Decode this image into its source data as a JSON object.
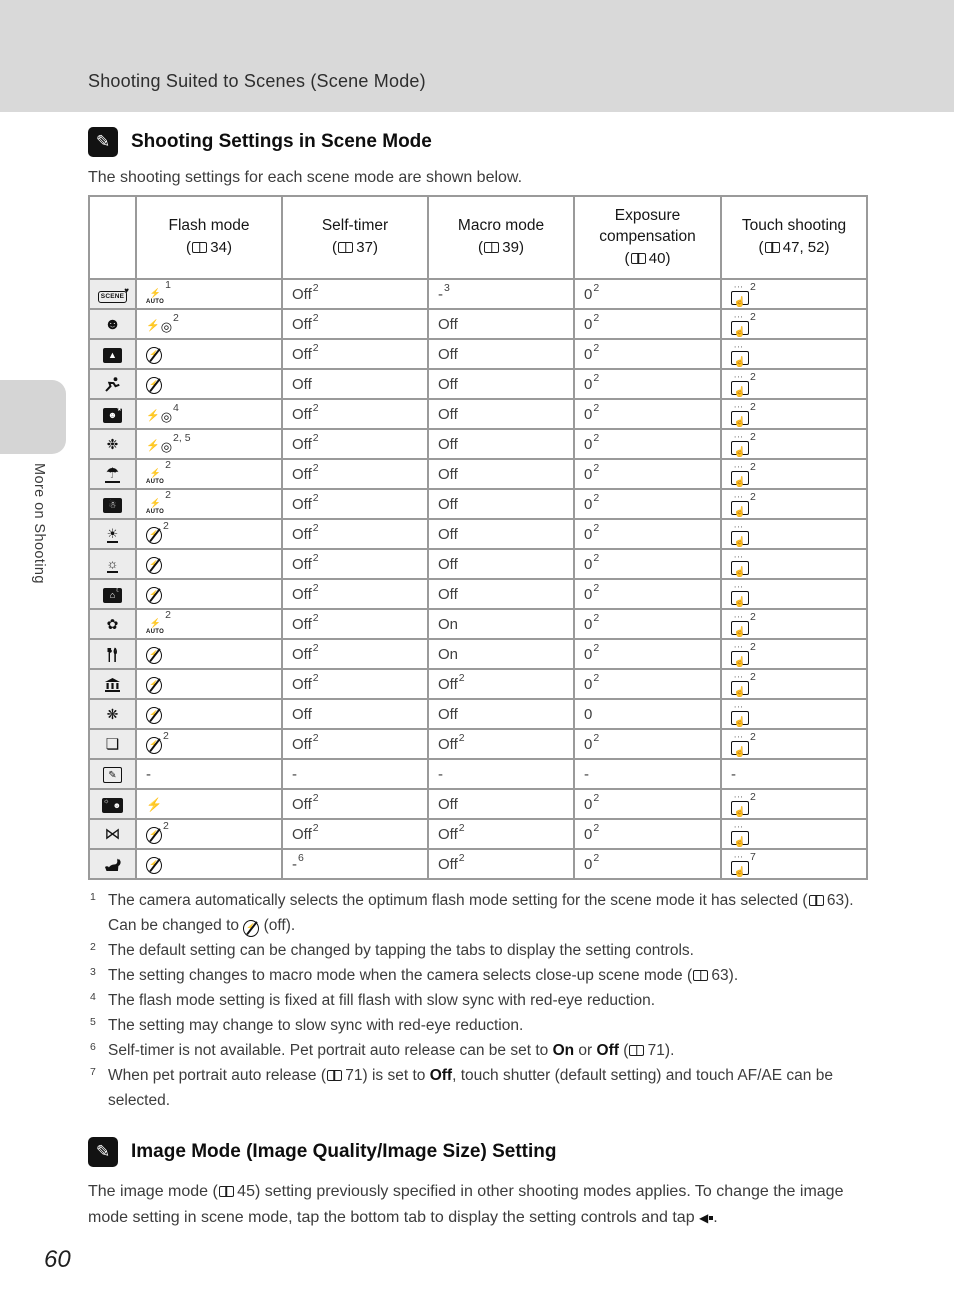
{
  "colors": {
    "band_gray": "#d9d9d9",
    "table_border_gray": "#9a9a9a",
    "icon_column_gray": "#ececec",
    "tab_gray": "#d5d5d5",
    "text": "#3c3c3c"
  },
  "page": {
    "header_title": "Shooting Suited to Scenes (Scene Mode)",
    "sidebar_label": "More on Shooting",
    "page_number": "60"
  },
  "section1": {
    "icon": "note-icon",
    "title": "Shooting Settings in Scene Mode",
    "intro": "The shooting settings for each scene mode are shown below."
  },
  "table": {
    "columns": [
      {
        "label": "",
        "book": null
      },
      {
        "label": "Flash mode",
        "book": "34"
      },
      {
        "label": "Self-timer",
        "book": "37"
      },
      {
        "label": "Macro mode",
        "book": "39"
      },
      {
        "label": "Exposure compensation",
        "book": "40"
      },
      {
        "label": "Touch shooting",
        "book": "47, 52"
      }
    ],
    "rows": [
      {
        "scene": "scene-auto-selector",
        "flash": {
          "icon": "flash-auto",
          "sup": "1"
        },
        "self_timer": {
          "text": "Off",
          "sup": "2"
        },
        "macro": {
          "text": "-",
          "sup": "3"
        },
        "exposure": {
          "text": "0",
          "sup": "2"
        },
        "touch": {
          "icon": "touch-shooting",
          "sup": "2"
        }
      },
      {
        "scene": "portrait",
        "flash": {
          "icon": "flash-redeye",
          "sup": "2"
        },
        "self_timer": {
          "text": "Off",
          "sup": "2"
        },
        "macro": {
          "text": "Off"
        },
        "exposure": {
          "text": "0",
          "sup": "2"
        },
        "touch": {
          "icon": "touch-shooting",
          "sup": "2"
        }
      },
      {
        "scene": "landscape",
        "flash": {
          "icon": "flash-off"
        },
        "self_timer": {
          "text": "Off",
          "sup": "2"
        },
        "macro": {
          "text": "Off"
        },
        "exposure": {
          "text": "0",
          "sup": "2"
        },
        "touch": {
          "icon": "touch-shooting"
        }
      },
      {
        "scene": "sports",
        "flash": {
          "icon": "flash-off"
        },
        "self_timer": {
          "text": "Off"
        },
        "macro": {
          "text": "Off"
        },
        "exposure": {
          "text": "0",
          "sup": "2"
        },
        "touch": {
          "icon": "touch-shooting",
          "sup": "2"
        }
      },
      {
        "scene": "night-portrait",
        "flash": {
          "icon": "flash-redeye",
          "sup": "4"
        },
        "self_timer": {
          "text": "Off",
          "sup": "2"
        },
        "macro": {
          "text": "Off"
        },
        "exposure": {
          "text": "0",
          "sup": "2"
        },
        "touch": {
          "icon": "touch-shooting",
          "sup": "2"
        }
      },
      {
        "scene": "party-indoor",
        "flash": {
          "icon": "flash-redeye",
          "sup": "2, 5"
        },
        "self_timer": {
          "text": "Off",
          "sup": "2"
        },
        "macro": {
          "text": "Off"
        },
        "exposure": {
          "text": "0",
          "sup": "2"
        },
        "touch": {
          "icon": "touch-shooting",
          "sup": "2"
        }
      },
      {
        "scene": "beach",
        "flash": {
          "icon": "flash-auto",
          "sup": "2"
        },
        "self_timer": {
          "text": "Off",
          "sup": "2"
        },
        "macro": {
          "text": "Off"
        },
        "exposure": {
          "text": "0",
          "sup": "2"
        },
        "touch": {
          "icon": "touch-shooting",
          "sup": "2"
        }
      },
      {
        "scene": "snow",
        "flash": {
          "icon": "flash-auto",
          "sup": "2"
        },
        "self_timer": {
          "text": "Off",
          "sup": "2"
        },
        "macro": {
          "text": "Off"
        },
        "exposure": {
          "text": "0",
          "sup": "2"
        },
        "touch": {
          "icon": "touch-shooting",
          "sup": "2"
        }
      },
      {
        "scene": "sunset",
        "flash": {
          "icon": "flash-off",
          "sup": "2"
        },
        "self_timer": {
          "text": "Off",
          "sup": "2"
        },
        "macro": {
          "text": "Off"
        },
        "exposure": {
          "text": "0",
          "sup": "2"
        },
        "touch": {
          "icon": "touch-shooting"
        }
      },
      {
        "scene": "dusk-dawn",
        "flash": {
          "icon": "flash-off"
        },
        "self_timer": {
          "text": "Off",
          "sup": "2"
        },
        "macro": {
          "text": "Off"
        },
        "exposure": {
          "text": "0",
          "sup": "2"
        },
        "touch": {
          "icon": "touch-shooting"
        }
      },
      {
        "scene": "night-landscape",
        "flash": {
          "icon": "flash-off"
        },
        "self_timer": {
          "text": "Off",
          "sup": "2"
        },
        "macro": {
          "text": "Off"
        },
        "exposure": {
          "text": "0",
          "sup": "2"
        },
        "touch": {
          "icon": "touch-shooting"
        }
      },
      {
        "scene": "close-up",
        "flash": {
          "icon": "flash-auto",
          "sup": "2"
        },
        "self_timer": {
          "text": "Off",
          "sup": "2"
        },
        "macro": {
          "text": "On"
        },
        "exposure": {
          "text": "0",
          "sup": "2"
        },
        "touch": {
          "icon": "touch-shooting",
          "sup": "2"
        }
      },
      {
        "scene": "food",
        "flash": {
          "icon": "flash-off"
        },
        "self_timer": {
          "text": "Off",
          "sup": "2"
        },
        "macro": {
          "text": "On"
        },
        "exposure": {
          "text": "0",
          "sup": "2"
        },
        "touch": {
          "icon": "touch-shooting",
          "sup": "2"
        }
      },
      {
        "scene": "museum",
        "flash": {
          "icon": "flash-off"
        },
        "self_timer": {
          "text": "Off",
          "sup": "2"
        },
        "macro": {
          "text": "Off",
          "sup": "2"
        },
        "exposure": {
          "text": "0",
          "sup": "2"
        },
        "touch": {
          "icon": "touch-shooting",
          "sup": "2"
        }
      },
      {
        "scene": "fireworks-show",
        "flash": {
          "icon": "flash-off"
        },
        "self_timer": {
          "text": "Off"
        },
        "macro": {
          "text": "Off"
        },
        "exposure": {
          "text": "0"
        },
        "touch": {
          "icon": "touch-shooting"
        }
      },
      {
        "scene": "black-and-white-copy",
        "flash": {
          "icon": "flash-off",
          "sup": "2"
        },
        "self_timer": {
          "text": "Off",
          "sup": "2"
        },
        "macro": {
          "text": "Off",
          "sup": "2"
        },
        "exposure": {
          "text": "0",
          "sup": "2"
        },
        "touch": {
          "icon": "touch-shooting",
          "sup": "2"
        }
      },
      {
        "scene": "drawing",
        "flash": {
          "text": "-"
        },
        "self_timer": {
          "text": "-"
        },
        "macro": {
          "text": "-"
        },
        "exposure": {
          "text": "-"
        },
        "touch": {
          "text": "-"
        }
      },
      {
        "scene": "backlighting",
        "flash": {
          "icon": "flash-fill"
        },
        "self_timer": {
          "text": "Off",
          "sup": "2"
        },
        "macro": {
          "text": "Off"
        },
        "exposure": {
          "text": "0",
          "sup": "2"
        },
        "touch": {
          "icon": "touch-shooting",
          "sup": "2"
        }
      },
      {
        "scene": "panorama-assist",
        "flash": {
          "icon": "flash-off",
          "sup": "2"
        },
        "self_timer": {
          "text": "Off",
          "sup": "2"
        },
        "macro": {
          "text": "Off",
          "sup": "2"
        },
        "exposure": {
          "text": "0",
          "sup": "2"
        },
        "touch": {
          "icon": "touch-shooting"
        }
      },
      {
        "scene": "pet-portrait",
        "flash": {
          "icon": "flash-off"
        },
        "self_timer": {
          "text": "-",
          "sup": "6"
        },
        "macro": {
          "text": "Off",
          "sup": "2"
        },
        "exposure": {
          "text": "0",
          "sup": "2"
        },
        "touch": {
          "icon": "touch-shooting",
          "sup": "7"
        }
      }
    ]
  },
  "footnotes": [
    {
      "num": "1",
      "segments": [
        {
          "t": "The camera automatically selects the optimum flash mode setting for the scene mode it has selected ("
        },
        {
          "book": "63"
        },
        {
          "t": "). Can be changed to "
        },
        {
          "icon": "flash-off"
        },
        {
          "t": " (off)."
        }
      ]
    },
    {
      "num": "2",
      "segments": [
        {
          "t": "The default setting can be changed by tapping the tabs to display the setting controls."
        }
      ]
    },
    {
      "num": "3",
      "segments": [
        {
          "t": "The setting changes to macro mode when the camera selects close-up scene mode ("
        },
        {
          "book": "63"
        },
        {
          "t": ")."
        }
      ]
    },
    {
      "num": "4",
      "segments": [
        {
          "t": "The flash mode setting is fixed at fill flash with slow sync with red-eye reduction."
        }
      ]
    },
    {
      "num": "5",
      "segments": [
        {
          "t": "The setting may change to slow sync with red-eye reduction."
        }
      ]
    },
    {
      "num": "6",
      "segments": [
        {
          "t": "Self-timer is not available. Pet portrait auto release can be set to "
        },
        {
          "b": "On"
        },
        {
          "t": " or "
        },
        {
          "b": "Off"
        },
        {
          "t": " ("
        },
        {
          "book": "71"
        },
        {
          "t": ")."
        }
      ]
    },
    {
      "num": "7",
      "segments": [
        {
          "t": "When pet portrait auto release ("
        },
        {
          "book": "71"
        },
        {
          "t": ") is set to "
        },
        {
          "b": "Off"
        },
        {
          "t": ", touch shutter (default setting) and touch AF/AE can be selected."
        }
      ]
    }
  ],
  "section2": {
    "icon": "note-icon",
    "title": "Image Mode (Image Quality/Image Size) Setting",
    "paragraph_segments": [
      {
        "t": "The image mode ("
      },
      {
        "book": "45"
      },
      {
        "t": ") setting previously specified in other shooting modes applies. To change the image mode setting in scene mode, tap the bottom tab to display the setting controls and tap "
      },
      {
        "icon": "image-mode"
      },
      {
        "t": "."
      }
    ]
  }
}
